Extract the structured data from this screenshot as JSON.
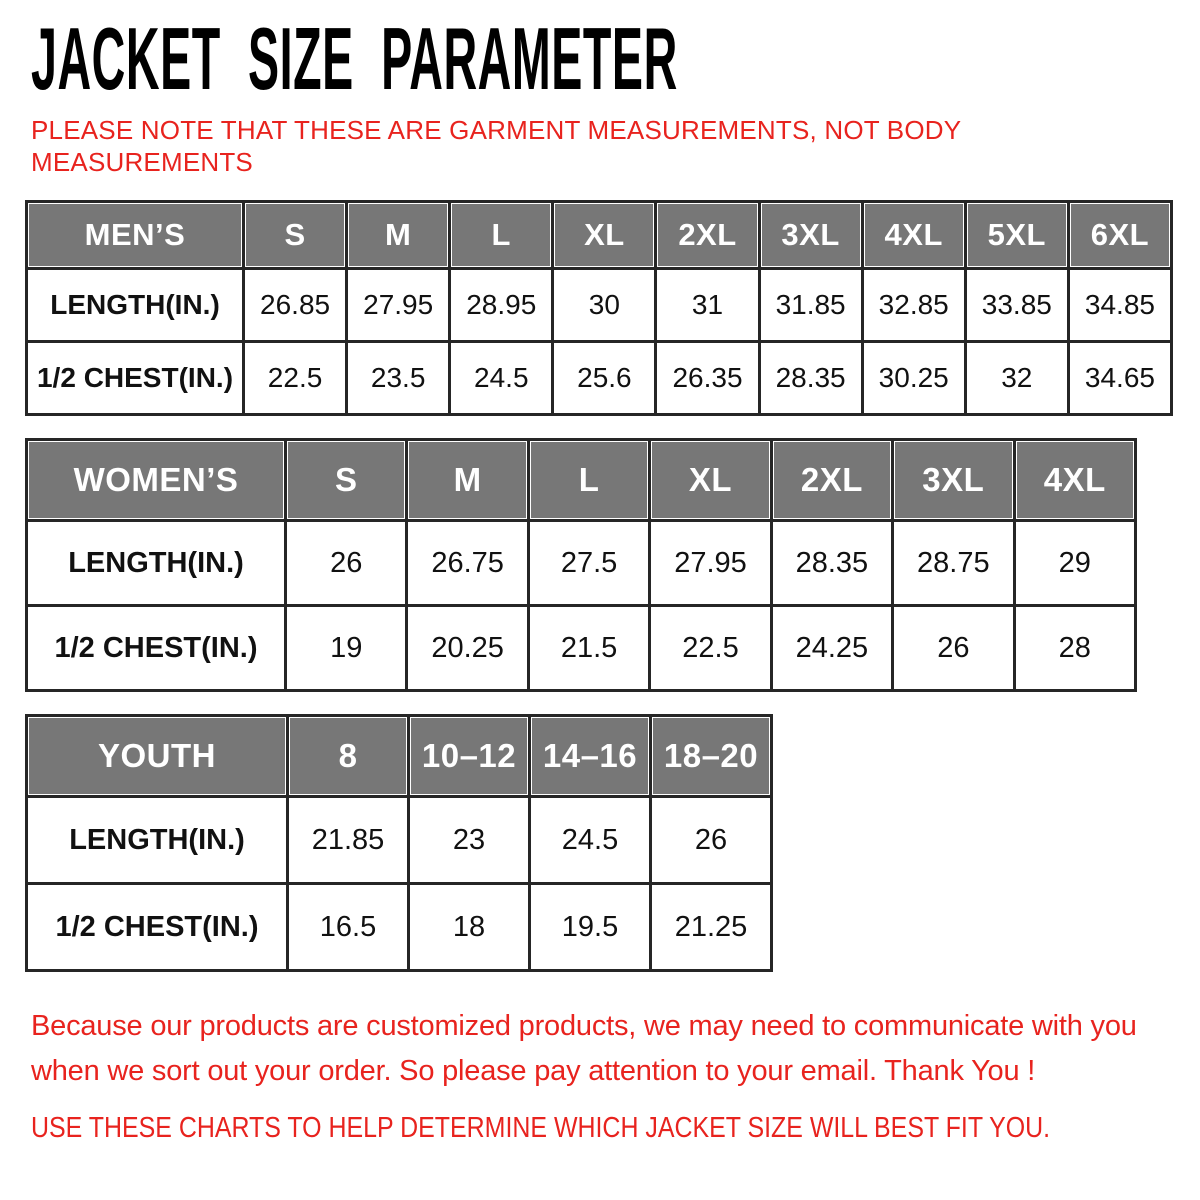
{
  "title": "JACKET SIZE PARAMETER",
  "note": {
    "lines": [
      "PLEASE NOTE THAT THESE ARE GARMENT MEASUREMENTS, NOT BODY",
      "MEASUREMENTS"
    ]
  },
  "tables": {
    "mens": {
      "name": "MEN’S",
      "sizes": [
        "S",
        "M",
        "L",
        "XL",
        "2XL",
        "3XL",
        "4XL",
        "5XL",
        "6XL"
      ],
      "rows": [
        {
          "label": "LENGTH(IN.)",
          "values": [
            "26.85",
            "27.95",
            "28.95",
            "30",
            "31",
            "31.85",
            "32.85",
            "33.85",
            "34.85"
          ]
        },
        {
          "label": "1/2 CHEST(IN.)",
          "values": [
            "22.5",
            "23.5",
            "24.5",
            "25.6",
            "26.35",
            "28.35",
            "30.25",
            "32",
            "34.65"
          ]
        }
      ]
    },
    "womens": {
      "name": "WOMEN’S",
      "sizes": [
        "S",
        "M",
        "L",
        "XL",
        "2XL",
        "3XL",
        "4XL"
      ],
      "rows": [
        {
          "label": "LENGTH(IN.)",
          "values": [
            "26",
            "26.75",
            "27.5",
            "27.95",
            "28.35",
            "28.75",
            "29"
          ]
        },
        {
          "label": "1/2 CHEST(IN.)",
          "values": [
            "19",
            "20.25",
            "21.5",
            "22.5",
            "24.25",
            "26",
            "28"
          ]
        }
      ]
    },
    "youth": {
      "name": "YOUTH",
      "sizes": [
        "8",
        "10–12",
        "14–16",
        "18–20"
      ],
      "rows": [
        {
          "label": "LENGTH(IN.)",
          "values": [
            "21.85",
            "23",
            "24.5",
            "26"
          ]
        },
        {
          "label": "1/2 CHEST(IN.)",
          "values": [
            "16.5",
            "18",
            "19.5",
            "21.25"
          ]
        }
      ]
    }
  },
  "footer": {
    "lines": [
      "Because our products are customized products, we may need to communicate with you",
      "when we sort out your order. So please pay attention to your email. Thank You !"
    ],
    "fit_advice": "USE THESE CHARTS TO HELP DETERMINE WHICH JACKET SIZE WILL BEST FIT YOU."
  },
  "colors": {
    "accent_red": "#e8231e",
    "header_gray": "#777777",
    "grid_dark": "#262626"
  }
}
